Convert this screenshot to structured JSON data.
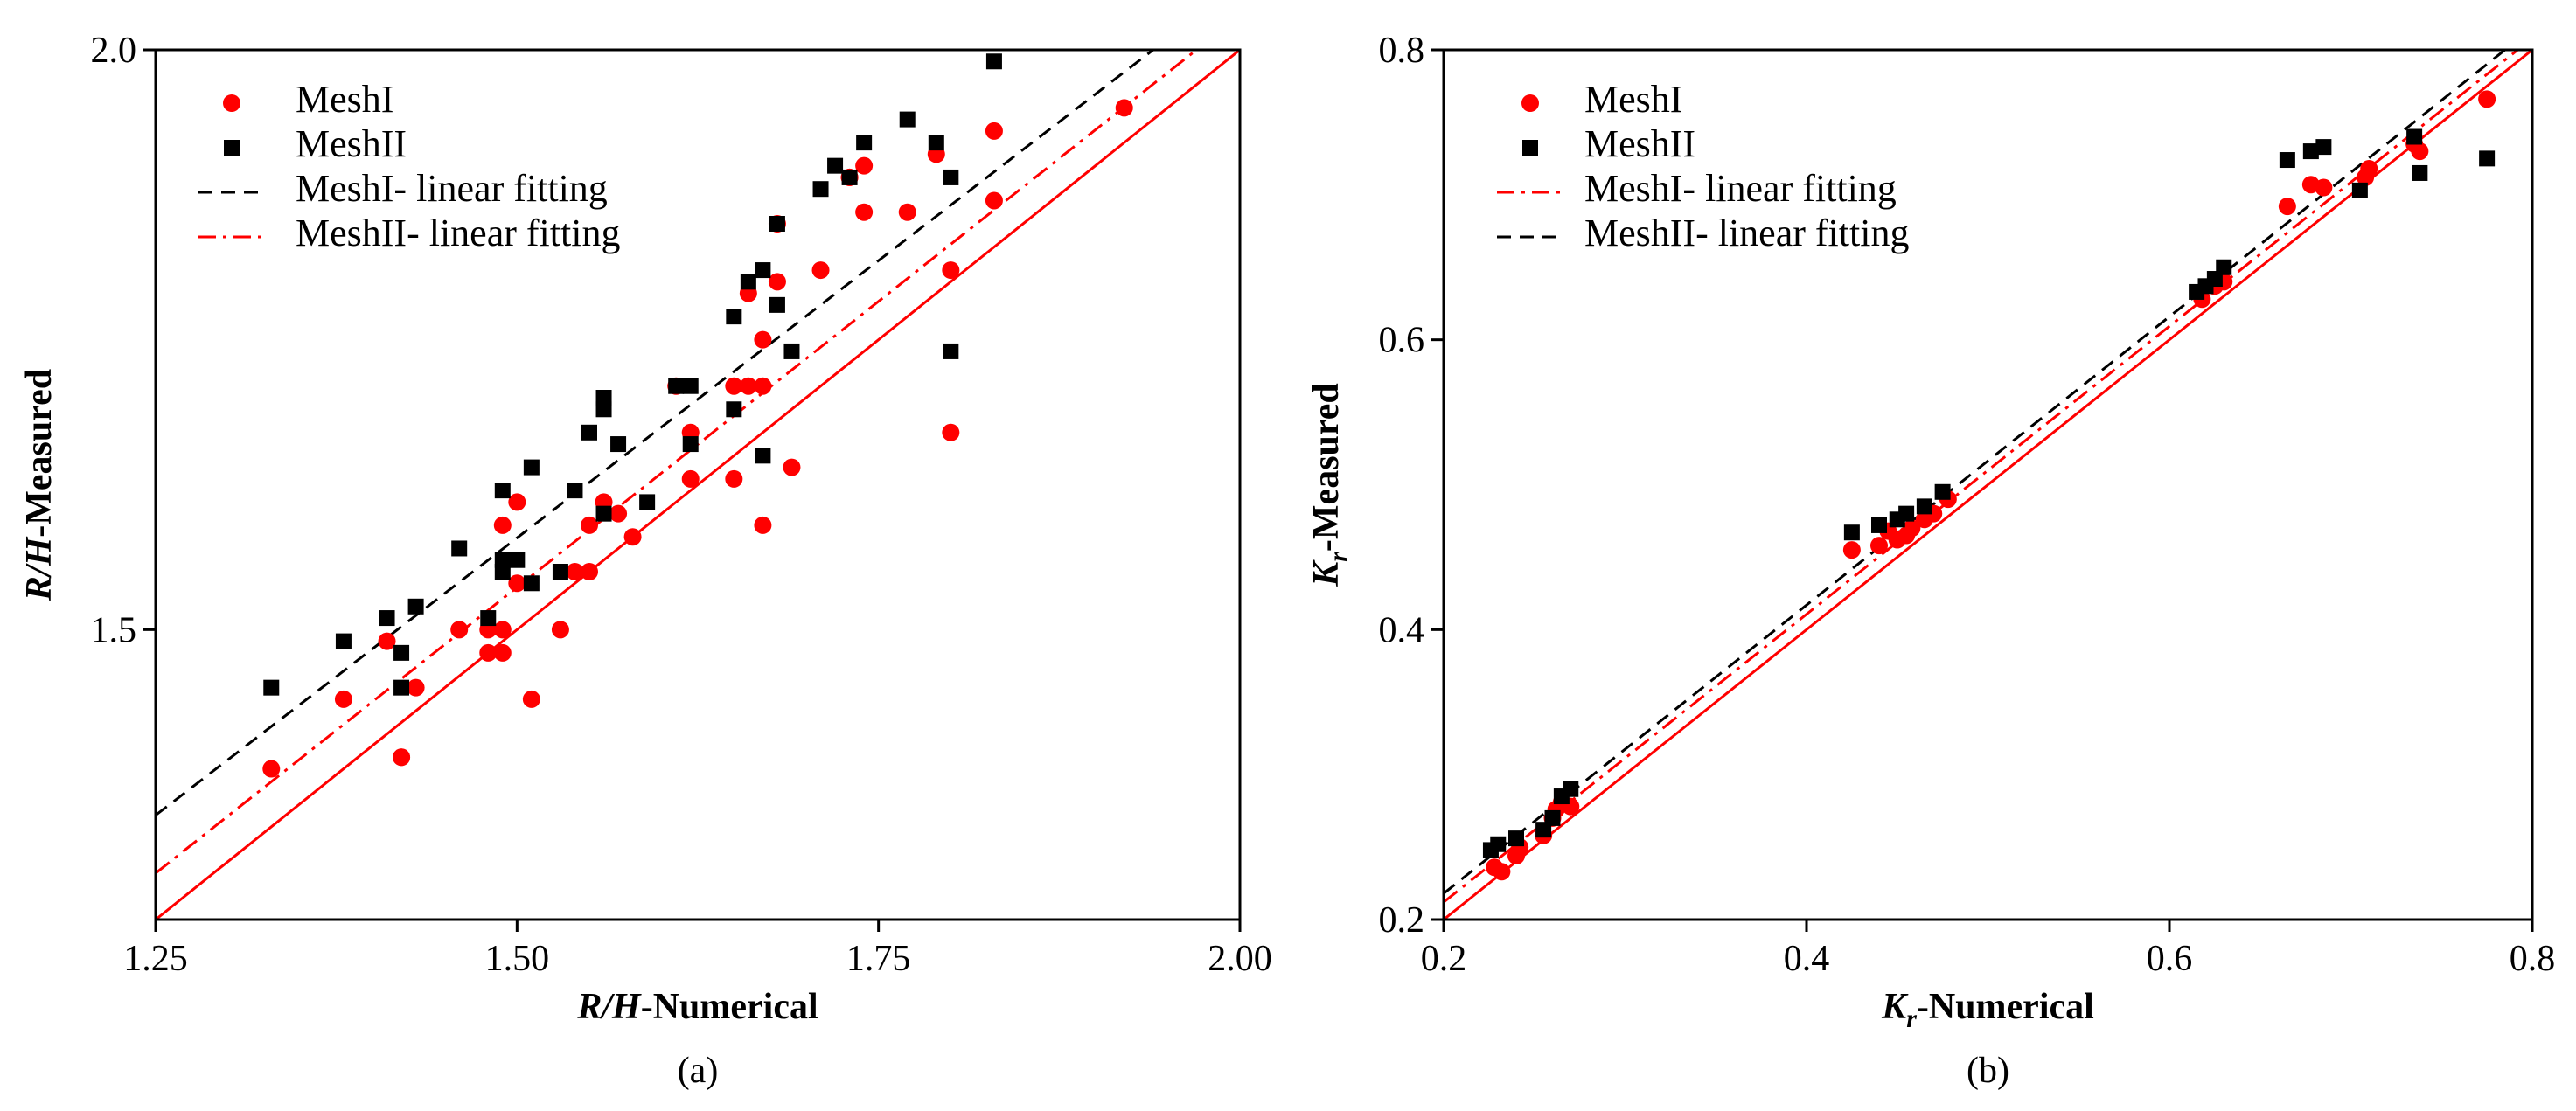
{
  "chart_data": [
    {
      "type": "scatter",
      "panel": "(a)",
      "xlabel": "R/H-Numerical",
      "ylabel": "R/H-Measured",
      "xlim": [
        1.25,
        2.0
      ],
      "ylim": [
        1.25,
        2.0
      ],
      "xticks": [
        1.25,
        1.5,
        1.75,
        2.0
      ],
      "xtick_labels": [
        "1.25",
        "1.50",
        "1.75",
        "2.00"
      ],
      "yticks": [
        1.5,
        2.0
      ],
      "ytick_labels": [
        "1.5",
        "2.0"
      ],
      "legend_position": "top-left",
      "series": [
        {
          "name": "MeshI",
          "kind": "points",
          "marker": "circle",
          "color": "#ff0000",
          "points": [
            [
              1.33,
              1.38
            ],
            [
              1.38,
              1.44
            ],
            [
              1.41,
              1.49
            ],
            [
              1.42,
              1.39
            ],
            [
              1.42,
              1.39
            ],
            [
              1.43,
              1.45
            ],
            [
              1.46,
              1.5
            ],
            [
              1.48,
              1.48
            ],
            [
              1.48,
              1.5
            ],
            [
              1.49,
              1.5
            ],
            [
              1.49,
              1.48
            ],
            [
              1.49,
              1.59
            ],
            [
              1.5,
              1.54
            ],
            [
              1.5,
              1.61
            ],
            [
              1.51,
              1.44
            ],
            [
              1.53,
              1.5
            ],
            [
              1.54,
              1.55
            ],
            [
              1.55,
              1.59
            ],
            [
              1.55,
              1.55
            ],
            [
              1.56,
              1.61
            ],
            [
              1.57,
              1.6
            ],
            [
              1.58,
              1.58
            ],
            [
              1.61,
              1.71
            ],
            [
              1.62,
              1.63
            ],
            [
              1.62,
              1.67
            ],
            [
              1.65,
              1.63
            ],
            [
              1.65,
              1.71
            ],
            [
              1.66,
              1.71
            ],
            [
              1.66,
              1.79
            ],
            [
              1.67,
              1.59
            ],
            [
              1.67,
              1.71
            ],
            [
              1.67,
              1.75
            ],
            [
              1.68,
              1.8
            ],
            [
              1.68,
              1.85
            ],
            [
              1.69,
              1.64
            ],
            [
              1.71,
              1.81
            ],
            [
              1.73,
              1.89
            ],
            [
              1.73,
              1.89
            ],
            [
              1.74,
              1.86
            ],
            [
              1.74,
              1.9
            ],
            [
              1.77,
              1.86
            ],
            [
              1.79,
              1.91
            ],
            [
              1.8,
              1.81
            ],
            [
              1.8,
              1.67
            ],
            [
              1.83,
              1.93
            ],
            [
              1.83,
              1.87
            ],
            [
              1.92,
              1.95
            ]
          ]
        },
        {
          "name": "MeshII",
          "kind": "points",
          "marker": "square",
          "color": "#000000",
          "points": [
            [
              1.33,
              1.45
            ],
            [
              1.38,
              1.49
            ],
            [
              1.41,
              1.51
            ],
            [
              1.42,
              1.45
            ],
            [
              1.42,
              1.48
            ],
            [
              1.43,
              1.52
            ],
            [
              1.46,
              1.57
            ],
            [
              1.48,
              1.51
            ],
            [
              1.49,
              1.55
            ],
            [
              1.49,
              1.56
            ],
            [
              1.49,
              1.62
            ],
            [
              1.5,
              1.56
            ],
            [
              1.51,
              1.54
            ],
            [
              1.51,
              1.64
            ],
            [
              1.53,
              1.55
            ],
            [
              1.54,
              1.62
            ],
            [
              1.55,
              1.67
            ],
            [
              1.56,
              1.6
            ],
            [
              1.56,
              1.7
            ],
            [
              1.56,
              1.69
            ],
            [
              1.57,
              1.66
            ],
            [
              1.59,
              1.61
            ],
            [
              1.61,
              1.71
            ],
            [
              1.62,
              1.71
            ],
            [
              1.62,
              1.66
            ],
            [
              1.65,
              1.69
            ],
            [
              1.65,
              1.77
            ],
            [
              1.66,
              1.8
            ],
            [
              1.67,
              1.81
            ],
            [
              1.67,
              1.65
            ],
            [
              1.68,
              1.78
            ],
            [
              1.68,
              1.85
            ],
            [
              1.69,
              1.74
            ],
            [
              1.71,
              1.88
            ],
            [
              1.72,
              1.9
            ],
            [
              1.73,
              1.89
            ],
            [
              1.74,
              1.92
            ],
            [
              1.77,
              1.94
            ],
            [
              1.79,
              1.92
            ],
            [
              1.8,
              1.89
            ],
            [
              1.8,
              1.74
            ],
            [
              1.83,
              1.99
            ]
          ]
        },
        {
          "name": "MeshI- linear fitting",
          "kind": "line",
          "style": "dashed",
          "color": "#000000",
          "line": [
            [
              1.25,
              1.34
            ],
            [
              1.94,
              2.0
            ]
          ]
        },
        {
          "name": "MeshII- linear fitting",
          "kind": "line",
          "style": "dashdot",
          "color": "#ff0000",
          "line": [
            [
              1.25,
              1.29
            ],
            [
              1.97,
              2.0
            ]
          ]
        },
        {
          "name": "",
          "kind": "line",
          "style": "solid",
          "color": "#ff0000",
          "line": [
            [
              1.25,
              1.25
            ],
            [
              2.0,
              2.0
            ]
          ]
        }
      ]
    },
    {
      "type": "scatter",
      "panel": "(b)",
      "xlabel": "Kr-Numerical",
      "ylabel": "Kr-Measured",
      "xlim": [
        0.2,
        0.8
      ],
      "ylim": [
        0.2,
        0.8
      ],
      "xticks": [
        0.2,
        0.4,
        0.6,
        0.8
      ],
      "xtick_labels": [
        "0.2",
        "0.4",
        "0.6",
        "0.8"
      ],
      "yticks": [
        0.2,
        0.4,
        0.6,
        0.8
      ],
      "ytick_labels": [
        "0.2",
        "0.4",
        "0.6",
        "0.8"
      ],
      "legend_position": "top-left",
      "series": [
        {
          "name": "MeshI",
          "kind": "points",
          "marker": "circle",
          "color": "#ff0000",
          "points": [
            [
              0.228,
              0.236
            ],
            [
              0.232,
              0.233
            ],
            [
              0.24,
              0.244
            ],
            [
              0.242,
              0.25
            ],
            [
              0.255,
              0.258
            ],
            [
              0.26,
              0.27
            ],
            [
              0.262,
              0.276
            ],
            [
              0.265,
              0.281
            ],
            [
              0.27,
              0.278
            ],
            [
              0.425,
              0.455
            ],
            [
              0.44,
              0.458
            ],
            [
              0.445,
              0.468
            ],
            [
              0.45,
              0.462
            ],
            [
              0.455,
              0.465
            ],
            [
              0.458,
              0.47
            ],
            [
              0.465,
              0.476
            ],
            [
              0.47,
              0.48
            ],
            [
              0.478,
              0.49
            ],
            [
              0.618,
              0.628
            ],
            [
              0.625,
              0.637
            ],
            [
              0.63,
              0.64
            ],
            [
              0.665,
              0.692
            ],
            [
              0.678,
              0.707
            ],
            [
              0.685,
              0.705
            ],
            [
              0.708,
              0.712
            ],
            [
              0.71,
              0.718
            ],
            [
              0.735,
              0.735
            ],
            [
              0.738,
              0.73
            ],
            [
              0.775,
              0.766
            ]
          ]
        },
        {
          "name": "MeshII",
          "kind": "points",
          "marker": "square",
          "color": "#000000",
          "points": [
            [
              0.226,
              0.248
            ],
            [
              0.23,
              0.252
            ],
            [
              0.24,
              0.256
            ],
            [
              0.255,
              0.262
            ],
            [
              0.26,
              0.27
            ],
            [
              0.265,
              0.285
            ],
            [
              0.27,
              0.29
            ],
            [
              0.425,
              0.467
            ],
            [
              0.44,
              0.472
            ],
            [
              0.45,
              0.476
            ],
            [
              0.455,
              0.48
            ],
            [
              0.465,
              0.485
            ],
            [
              0.475,
              0.495
            ],
            [
              0.615,
              0.633
            ],
            [
              0.62,
              0.637
            ],
            [
              0.625,
              0.642
            ],
            [
              0.63,
              0.65
            ],
            [
              0.665,
              0.724
            ],
            [
              0.678,
              0.73
            ],
            [
              0.685,
              0.733
            ],
            [
              0.705,
              0.703
            ],
            [
              0.735,
              0.74
            ],
            [
              0.738,
              0.715
            ],
            [
              0.775,
              0.725
            ]
          ]
        },
        {
          "name": "MeshI- linear fitting",
          "kind": "line",
          "style": "dashdot",
          "color": "#ff0000",
          "line": [
            [
              0.2,
              0.212
            ],
            [
              0.792,
              0.8
            ]
          ]
        },
        {
          "name": "MeshII- linear fitting",
          "kind": "line",
          "style": "dashed",
          "color": "#000000",
          "line": [
            [
              0.2,
              0.218
            ],
            [
              0.785,
              0.8
            ]
          ]
        },
        {
          "name": "",
          "kind": "line",
          "style": "solid",
          "color": "#ff0000",
          "line": [
            [
              0.2,
              0.2
            ],
            [
              0.8,
              0.8
            ]
          ]
        }
      ]
    }
  ]
}
